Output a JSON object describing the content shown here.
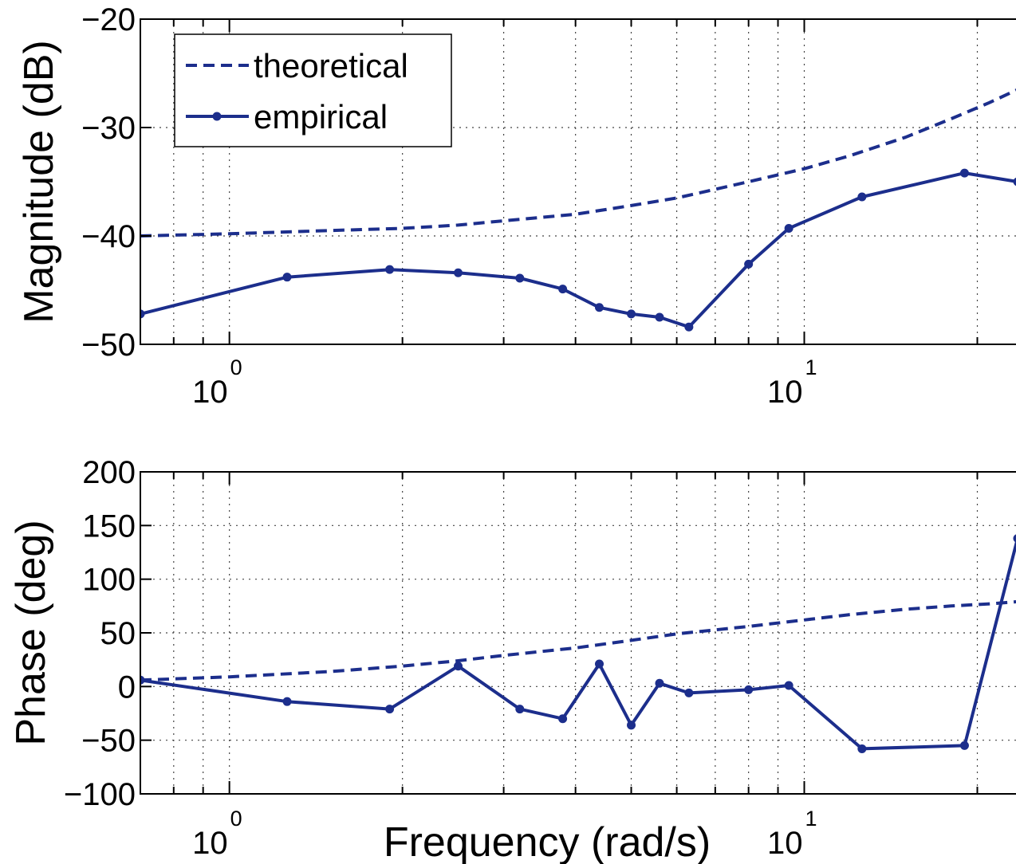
{
  "chart_data": [
    {
      "type": "line",
      "id": "magnitude",
      "xlabel": "",
      "ylabel": "Magnitude (dB)",
      "xscale": "log",
      "xlim": [
        0.7,
        23.5
      ],
      "ylim": [
        -50,
        -20
      ],
      "yticks": [
        -50,
        -40,
        -30,
        -20
      ],
      "ytick_labels": [
        "−50",
        "−40",
        "−30",
        "−20"
      ],
      "xticks_major": [
        {
          "base": "10",
          "exp": "0",
          "value": 1
        },
        {
          "base": "10",
          "exp": "1",
          "value": 10
        }
      ],
      "grid": true,
      "legend": {
        "placement": "top-left",
        "entries": [
          {
            "label": "theoretical",
            "style": "dashed"
          },
          {
            "label": "empirical",
            "style": "solid-markers"
          }
        ]
      },
      "series": [
        {
          "name": "theoretical",
          "style": "dashed",
          "color": "#1c2e8c",
          "x": [
            0.7,
            1.0,
            1.5,
            2.0,
            2.5,
            3.0,
            4.0,
            5.0,
            6.0,
            7.0,
            8.0,
            10.0,
            12.0,
            15.0,
            18.0,
            21.0,
            23.5
          ],
          "y": [
            -40.0,
            -39.8,
            -39.5,
            -39.3,
            -39.0,
            -38.6,
            -38.0,
            -37.2,
            -36.5,
            -35.7,
            -35.0,
            -33.8,
            -32.6,
            -30.9,
            -29.2,
            -27.7,
            -26.5
          ]
        },
        {
          "name": "empirical",
          "style": "solid-markers",
          "color": "#1c2e8c",
          "x": [
            0.7,
            1.26,
            1.9,
            2.5,
            3.2,
            3.8,
            4.4,
            5.0,
            5.6,
            6.3,
            8.0,
            9.4,
            12.6,
            19.0,
            23.5
          ],
          "y": [
            -47.2,
            -43.8,
            -43.1,
            -43.4,
            -43.9,
            -44.9,
            -46.6,
            -47.2,
            -47.5,
            -48.4,
            -42.6,
            -39.3,
            -36.4,
            -34.2,
            -35.0
          ]
        }
      ]
    },
    {
      "type": "line",
      "id": "phase",
      "xlabel": "Frequency (rad/s)",
      "ylabel": "Phase (deg)",
      "xscale": "log",
      "xlim": [
        0.7,
        23.5
      ],
      "ylim": [
        -100,
        200
      ],
      "yticks": [
        -100,
        -50,
        0,
        50,
        100,
        150,
        200
      ],
      "ytick_labels": [
        "−100",
        "−50",
        "0",
        "50",
        "100",
        "150",
        "200"
      ],
      "xticks_major": [
        {
          "base": "10",
          "exp": "0",
          "value": 1
        },
        {
          "base": "10",
          "exp": "1",
          "value": 10
        }
      ],
      "grid": true,
      "series": [
        {
          "name": "theoretical",
          "style": "dashed",
          "color": "#1c2e8c",
          "x": [
            0.7,
            1.0,
            1.5,
            2.0,
            2.5,
            3.0,
            4.0,
            5.0,
            6.0,
            8.0,
            10.0,
            12.0,
            15.0,
            18.0,
            21.0,
            23.5
          ],
          "y": [
            6,
            9,
            14,
            19,
            24,
            29,
            36,
            43,
            49,
            56,
            62,
            67,
            72,
            75,
            77,
            79
          ]
        },
        {
          "name": "empirical",
          "style": "solid-markers",
          "color": "#1c2e8c",
          "x": [
            0.7,
            1.26,
            1.9,
            2.5,
            3.2,
            3.8,
            4.4,
            5.0,
            5.6,
            6.3,
            8.0,
            9.4,
            12.6,
            19.0,
            23.5
          ],
          "y": [
            6,
            -14,
            -21,
            19,
            -21,
            -30,
            21,
            -36,
            3,
            -6,
            -3,
            1,
            -58,
            -55,
            138
          ]
        }
      ]
    }
  ]
}
